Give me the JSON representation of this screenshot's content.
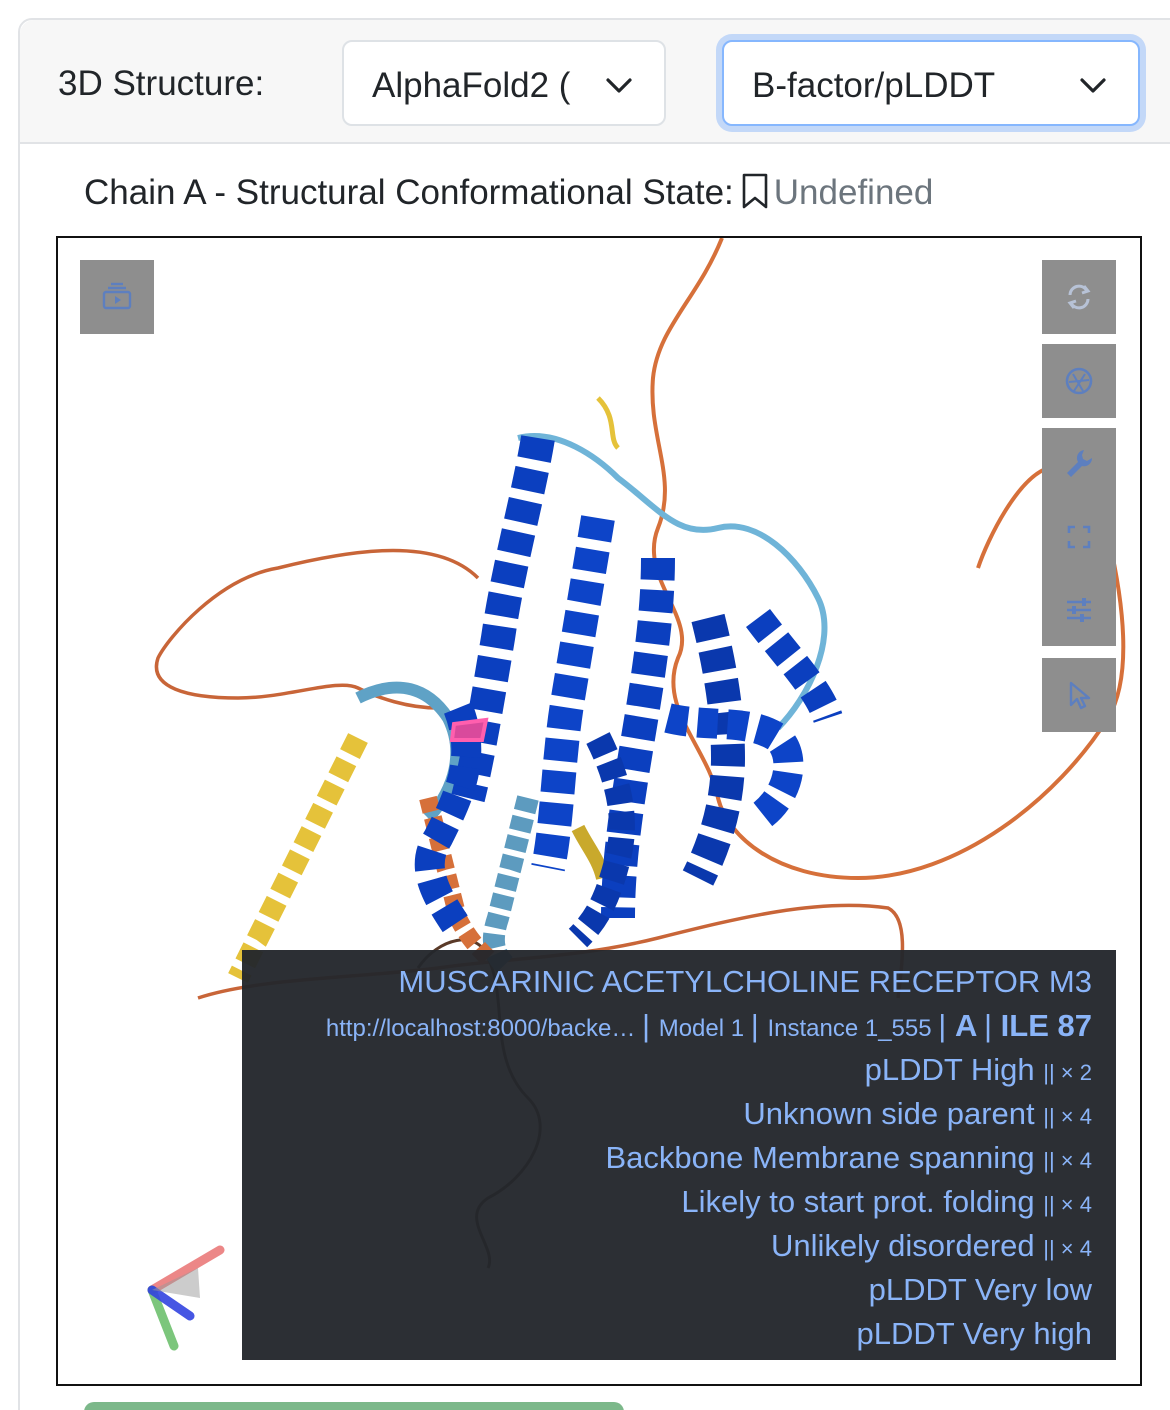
{
  "header": {
    "label": "3D Structure:",
    "structure_select": "AlphaFold2 (",
    "coloring_select": "B-factor/pLDDT"
  },
  "state": {
    "label": "Chain A - Structural Conformational State:",
    "value": "Undefined"
  },
  "tooltip": {
    "title": "MUSCARINIC ACETYLCHOLINE RECEPTOR M3",
    "url": "http://localhost:8000/backe…",
    "model": "Model 1",
    "instance": "Instance 1_555",
    "chain": "A",
    "residue": "ILE 87",
    "lines": [
      {
        "label": "pLDDT High",
        "mult": "|| × 2"
      },
      {
        "label": "Unknown side parent",
        "mult": "|| × 4"
      },
      {
        "label": "Backbone Membrane spanning",
        "mult": "|| × 4"
      },
      {
        "label": "Likely to start prot. folding",
        "mult": "|| × 4"
      },
      {
        "label": "Unlikely disordered",
        "mult": "|| × 4"
      },
      {
        "label": "pLDDT Very low",
        "mult": ""
      },
      {
        "label": "pLDDT Very high",
        "mult": ""
      }
    ]
  },
  "viewer_controls": [
    "animation-icon",
    "reset-camera-icon",
    "screenshot-icon",
    "wrench-icon",
    "fullscreen-icon",
    "settings-sliders-icon",
    "selection-cursor-icon"
  ],
  "colors": {
    "very_high": "#0b3fbf",
    "high": "#6fb4d8",
    "low": "#e5c23a",
    "very_low": "#d6703a",
    "tooltip_text": "#8ab4f8"
  }
}
